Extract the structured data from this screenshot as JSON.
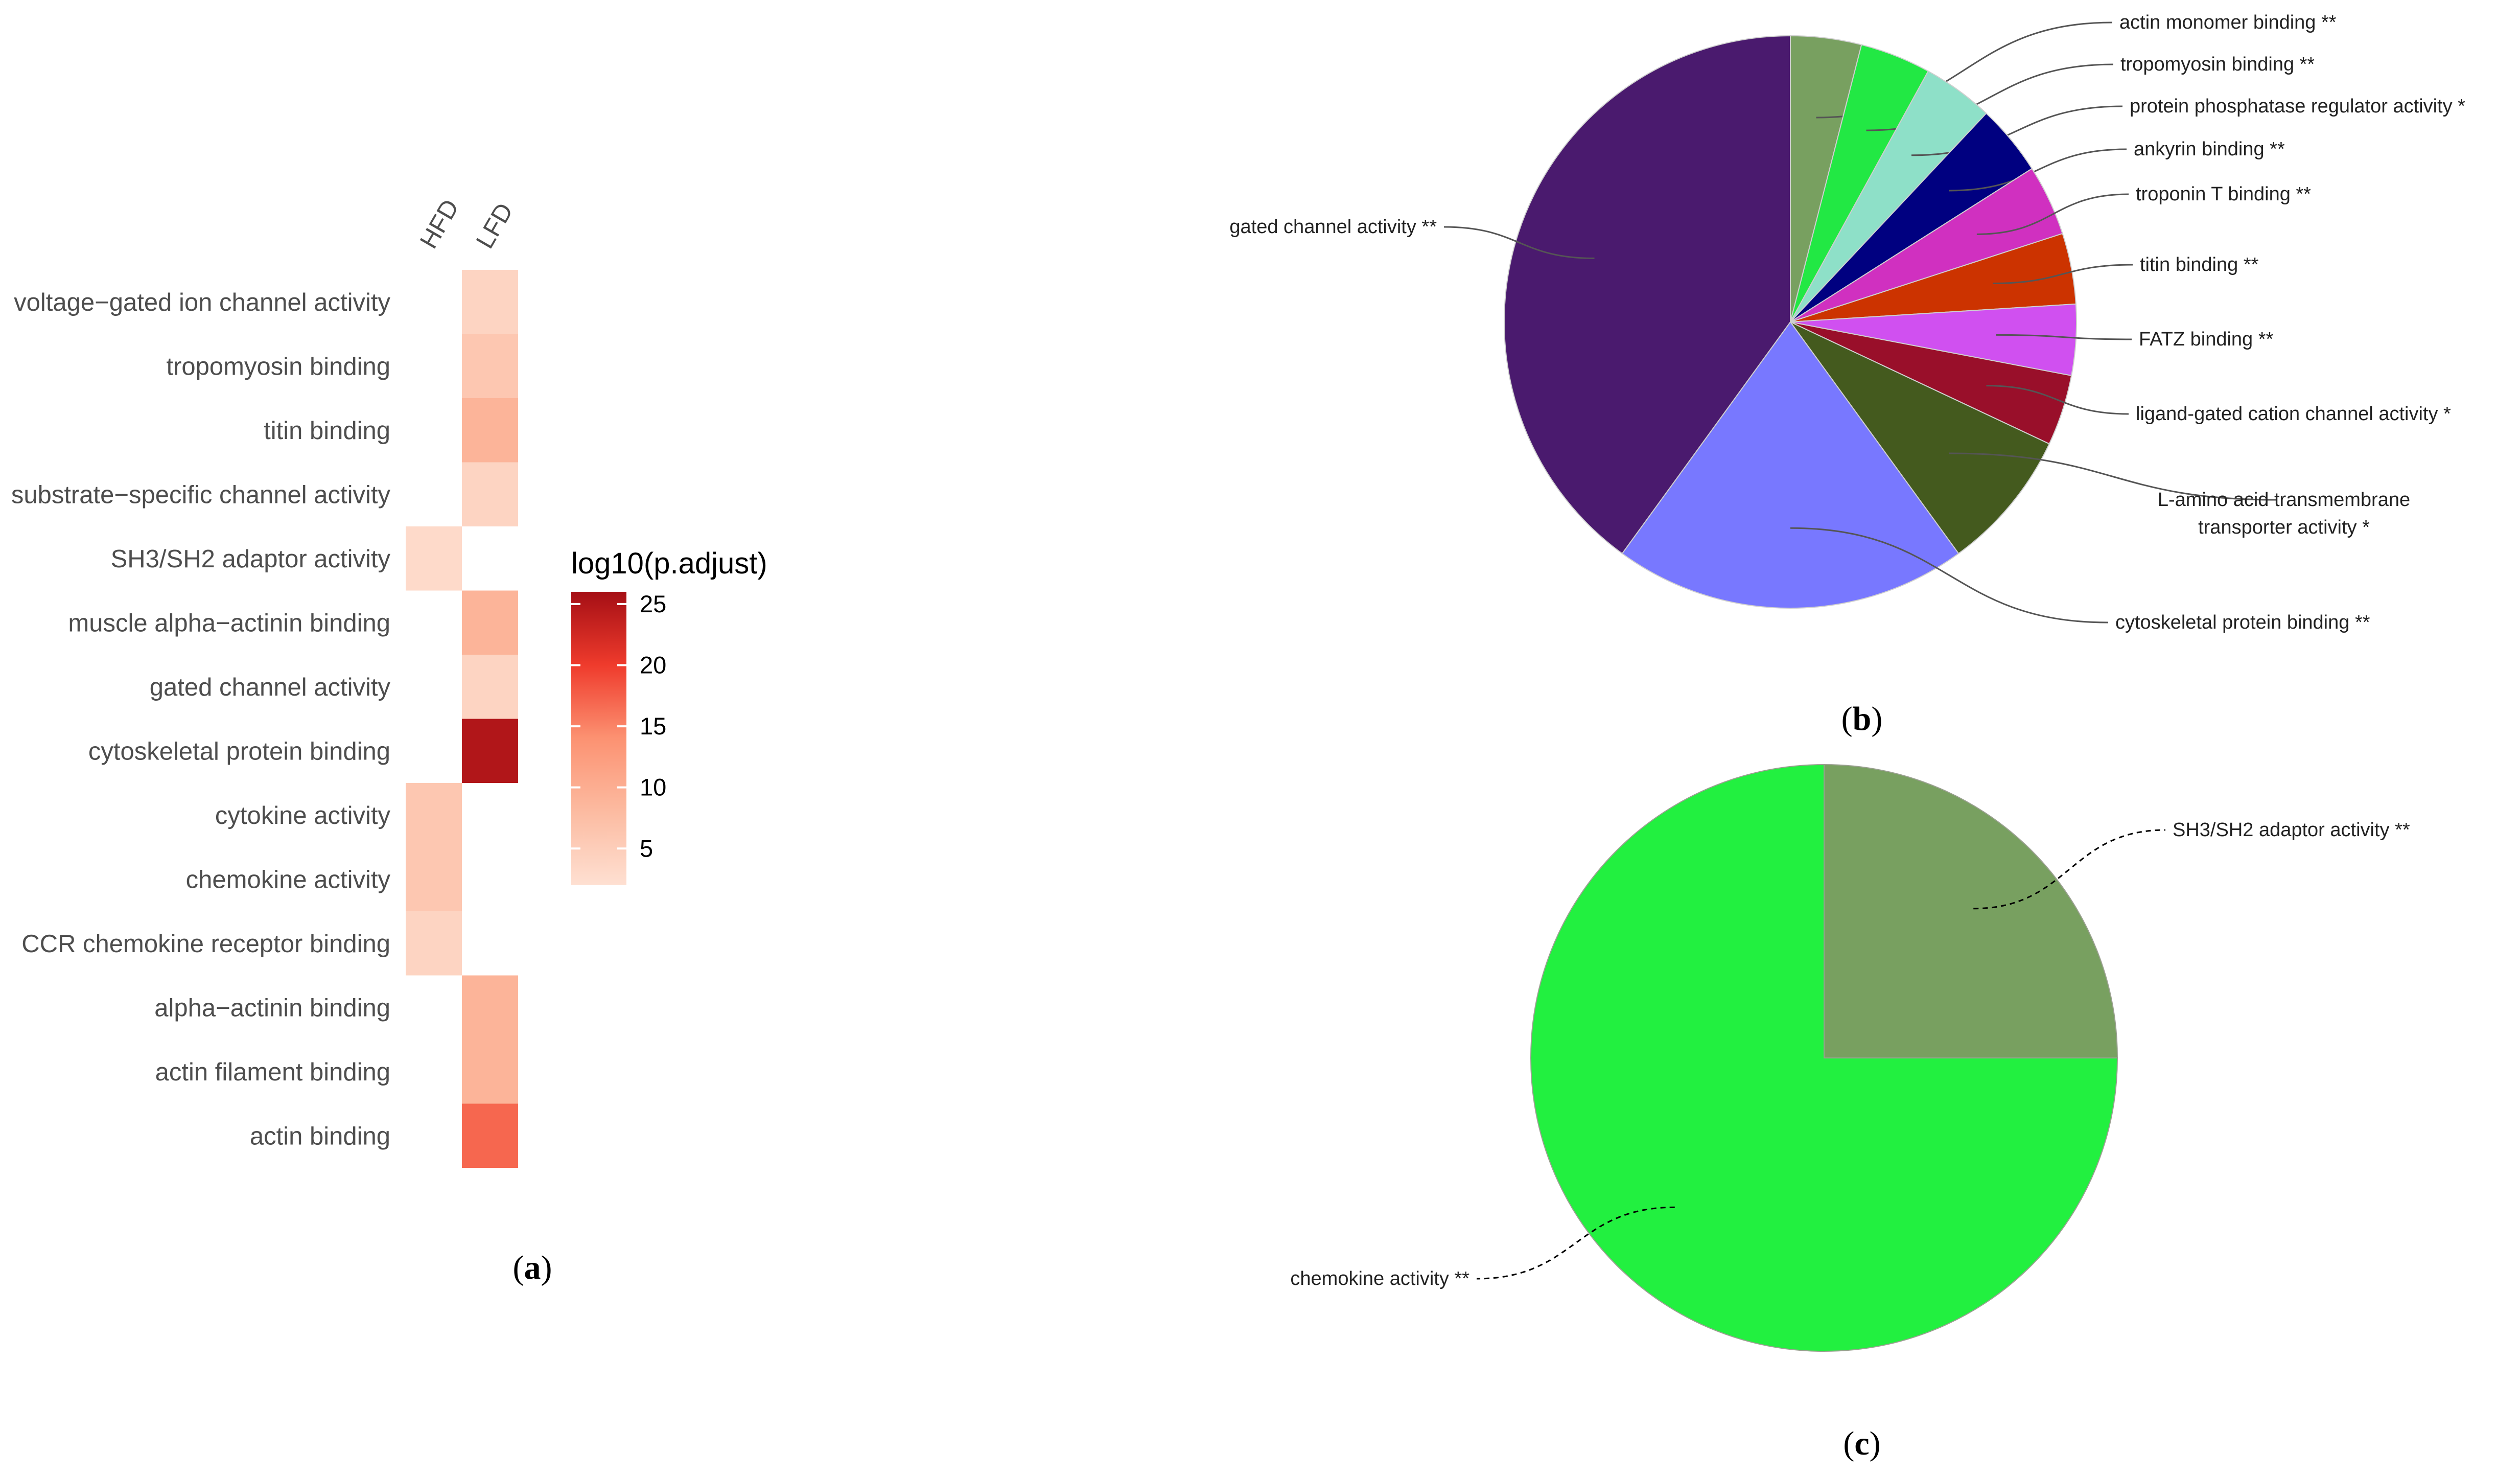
{
  "chart_data": [
    {
      "panel": "(a)",
      "type": "heatmap",
      "columns": [
        "HFD",
        "LFD"
      ],
      "rows": [
        "voltage−gated ion channel activity",
        "tropomyosin binding",
        "titin binding",
        "substrate−specific channel activity",
        "SH3/SH2 adaptor activity",
        "muscle alpha−actinin binding",
        "gated channel activity",
        "cytoskeletal protein binding",
        "cytokine activity",
        "chemokine activity",
        "CCR chemokine receptor binding",
        "alpha−actinin binding",
        "actin filament binding",
        "actin binding"
      ],
      "values": [
        [
          null,
          4
        ],
        [
          null,
          6
        ],
        [
          null,
          9
        ],
        [
          null,
          4
        ],
        [
          3,
          null
        ],
        [
          null,
          9
        ],
        [
          null,
          4
        ],
        [
          null,
          25
        ],
        [
          6,
          null
        ],
        [
          6,
          null
        ],
        [
          4,
          null
        ],
        [
          null,
          9
        ],
        [
          null,
          9
        ],
        [
          null,
          17
        ]
      ],
      "legend_title": "log10(p.adjust)",
      "legend_ticks": [
        5,
        10,
        15,
        20,
        25
      ],
      "color_range": [
        2,
        26
      ],
      "colors": [
        "#fee0d2",
        "#fcbba1",
        "#fc9272",
        "#ef3b2c",
        "#a50f15"
      ]
    },
    {
      "panel": "(b)",
      "type": "pie",
      "slices": [
        {
          "label": "actin monomer binding **",
          "value": 4,
          "color": "#78a060"
        },
        {
          "label": "tropomyosin binding **",
          "value": 4,
          "color": "#22e844"
        },
        {
          "label": "protein phosphatase regulator activity *",
          "value": 4,
          "color": "#8ee0c8"
        },
        {
          "label": "ankyrin binding **",
          "value": 4,
          "color": "#000080"
        },
        {
          "label": "troponin T binding **",
          "value": 4,
          "color": "#d030c0"
        },
        {
          "label": "titin binding **",
          "value": 4,
          "color": "#cc3300"
        },
        {
          "label": "FATZ binding **",
          "value": 4,
          "color": "#d050f0"
        },
        {
          "label": "ligand-gated cation channel activity *",
          "value": 4,
          "color": "#990f2a"
        },
        {
          "label": "L-amino acid transmembrane transporter activity *",
          "value": 8,
          "color": "#445a1e"
        },
        {
          "label": "cytoskeletal protein binding **",
          "value": 20,
          "color": "#7878ff"
        },
        {
          "label": "gated channel activity **",
          "value": 40,
          "color": "#4a1a6e"
        }
      ]
    },
    {
      "panel": "(c)",
      "type": "pie",
      "slices": [
        {
          "label": "SH3/SH2 adaptor activity **",
          "value": 25,
          "color": "#78a060"
        },
        {
          "label": "chemokine activity **",
          "value": 75,
          "color": "#22f040"
        }
      ]
    }
  ],
  "panel_labels": {
    "a": {
      "open": "(",
      "letter": "a",
      "close": ")"
    },
    "b": {
      "open": "(",
      "letter": "b",
      "close": ")"
    },
    "c": {
      "open": "(",
      "letter": "c",
      "close": ")"
    }
  }
}
